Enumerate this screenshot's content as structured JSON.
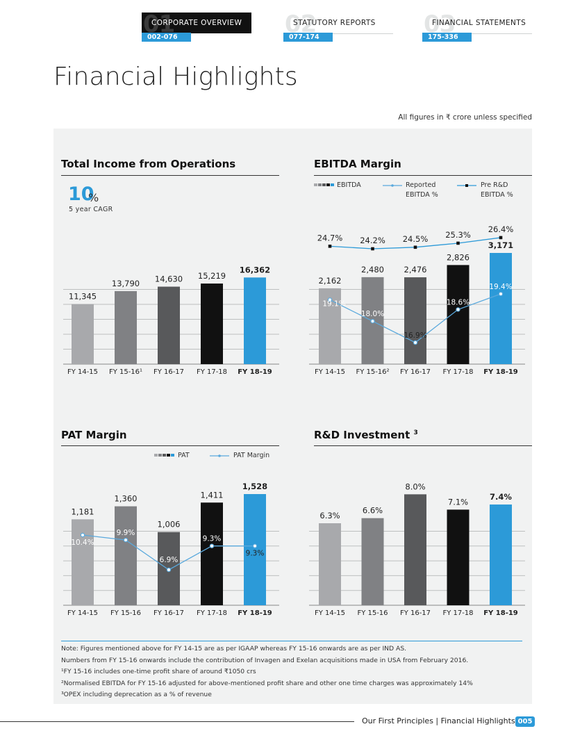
{
  "nav": [
    {
      "num": "01",
      "label": "CORPORATE OVERVIEW",
      "pages": "002-076",
      "active": true
    },
    {
      "num": "02",
      "label": "STATUTORY REPORTS",
      "pages": "077-174",
      "active": false
    },
    {
      "num": "03",
      "label": "FINANCIAL STATEMENTS",
      "pages": "175-336",
      "active": false
    }
  ],
  "page_title": "Financial Highlights",
  "units_note": "All figures in ₹ crore unless specified",
  "colors": {
    "bar_palette": [
      "#a8a9ac",
      "#808184",
      "#58595b",
      "#111111",
      "#2c9ad8"
    ],
    "accent": "#2c9ad8",
    "line_light": "#5aa9dd"
  },
  "income": {
    "title": "Total Income from Operations",
    "cagr_value": "10",
    "cagr_unit": "%",
    "cagr_label": "5 year CAGR"
  },
  "ebitda": {
    "title": "EBITDA Margin",
    "legend_bar": "EBITDA",
    "legend_line1_a": "Reported",
    "legend_line1_b": "EBITDA %",
    "legend_line2_a": "Pre R&D",
    "legend_line2_b": "EBITDA %"
  },
  "pat": {
    "title": "PAT Margin",
    "legend_bar": "PAT",
    "legend_line": "PAT Margin"
  },
  "rnd": {
    "title": "R&D Investment",
    "title_sup": "3"
  },
  "chart_data": [
    {
      "type": "bar",
      "title": "Total Income from Operations",
      "categories": [
        "FY 14-15",
        "FY 15-16¹",
        "FY 16-17",
        "FY 17-18",
        "FY 18-19"
      ],
      "values": [
        11345,
        13790,
        14630,
        15219,
        16362
      ],
      "value_labels": [
        "11,345",
        "13,790",
        "14,630",
        "15,219",
        "16,362"
      ],
      "ylim": [
        0,
        21000
      ],
      "grid": true
    },
    {
      "type": "bar",
      "title": "EBITDA Margin",
      "categories": [
        "FY 14-15",
        "FY 15-16²",
        "FY 16-17",
        "FY 17-18",
        "FY 18-19"
      ],
      "values": [
        2162,
        2480,
        2476,
        2826,
        3171
      ],
      "value_labels": [
        "2,162",
        "2,480",
        "2,476",
        "2,826",
        "3,171"
      ],
      "series": [
        {
          "name": "Reported EBITDA %",
          "values": [
            19.1,
            18.0,
            16.9,
            18.6,
            19.4
          ],
          "labels": [
            "19.1%",
            "18.0%",
            "16.9%",
            "18.6%",
            "19.4%"
          ]
        },
        {
          "name": "Pre R&D EBITDA %",
          "values": [
            24.7,
            24.2,
            24.5,
            25.3,
            26.4
          ],
          "labels": [
            "24.7%",
            "24.2%",
            "24.5%",
            "25.3%",
            "26.4%"
          ]
        }
      ],
      "grid": true
    },
    {
      "type": "bar",
      "title": "PAT Margin",
      "categories": [
        "FY 14-15",
        "FY 15-16",
        "FY 16-17",
        "FY 17-18",
        "FY 18-19"
      ],
      "values": [
        1181,
        1360,
        1006,
        1411,
        1528
      ],
      "value_labels": [
        "1,181",
        "1,360",
        "1,006",
        "1,411",
        "1,528"
      ],
      "series": [
        {
          "name": "PAT Margin",
          "values": [
            10.4,
            9.9,
            6.9,
            9.3,
            9.3
          ],
          "labels": [
            "10.4%",
            "9.9%",
            "6.9%",
            "9.3%",
            "9.3%"
          ]
        }
      ],
      "grid": true
    },
    {
      "type": "bar",
      "title": "R&D Investment",
      "categories": [
        "FY 14-15",
        "FY 15-16",
        "FY 16-17",
        "FY 17-18",
        "FY 18-19"
      ],
      "values": [
        6.3,
        6.6,
        8.0,
        7.1,
        7.4
      ],
      "value_labels": [
        "6.3%",
        "6.6%",
        "8.0%",
        "7.1%",
        "7.4%"
      ],
      "grid": true
    }
  ],
  "notes": [
    "Note: Figures mentioned above for FY 14-15 are as per IGAAP whereas FY 15-16 onwards are as per IND AS.",
    "Numbers from FY 15-16 onwards include the contribution of Invagen and Exelan acquisitions made in USA from February 2016.",
    "¹FY 15-16 includes one-time profit share of around ₹1050 crs",
    "²Normalised EBITDA for FY 15-16 adjusted for above-mentioned profit share and other one time charges was approximately 14%",
    "³OPEX including deprecation as a % of revenue"
  ],
  "footer": {
    "text": "Our First Principles | Financial Highlights",
    "page": "005"
  }
}
